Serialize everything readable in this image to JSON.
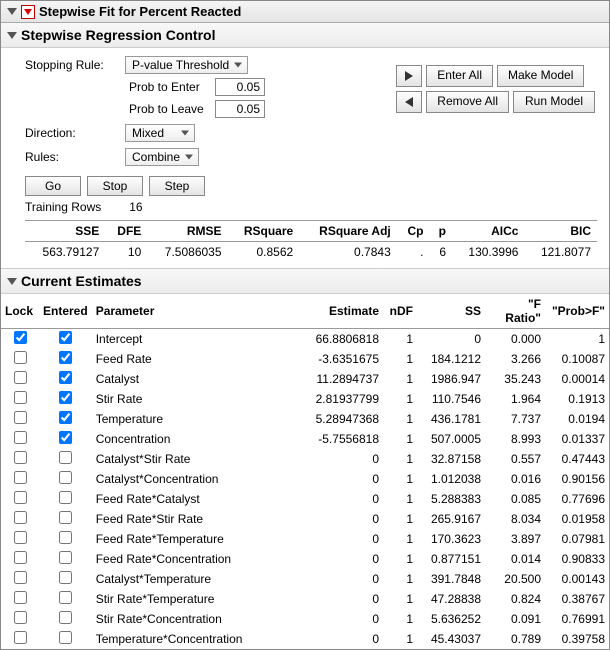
{
  "title": "Stepwise Fit for Percent Reacted",
  "regression": {
    "title": "Stepwise Regression Control",
    "stopping_label": "Stopping Rule:",
    "stopping_value": "P-value Threshold",
    "prob_enter_label": "Prob to Enter",
    "prob_enter_value": "0.05",
    "prob_leave_label": "Prob to Leave",
    "prob_leave_value": "0.05",
    "direction_label": "Direction:",
    "direction_value": "Mixed",
    "rules_label": "Rules:",
    "rules_value": "Combine",
    "enter_all": "Enter All",
    "make_model": "Make Model",
    "remove_all": "Remove All",
    "run_model": "Run Model",
    "go": "Go",
    "stop": "Stop",
    "step": "Step",
    "training_rows_label": "Training Rows",
    "training_rows_value": "16"
  },
  "stats": {
    "headers": [
      "SSE",
      "DFE",
      "RMSE",
      "RSquare",
      "RSquare Adj",
      "Cp",
      "p",
      "AICc",
      "BIC"
    ],
    "values": [
      "563.79127",
      "10",
      "7.5086035",
      "0.8562",
      "0.7843",
      ".",
      "6",
      "130.3996",
      "121.8077"
    ]
  },
  "estimates_title": "Current Estimates",
  "est_headers": {
    "lock": "Lock",
    "entered": "Entered",
    "parameter": "Parameter",
    "estimate": "Estimate",
    "ndf": "nDF",
    "ss": "SS",
    "fratio": "\"F Ratio\"",
    "probf": "\"Prob>F\""
  },
  "rows": [
    {
      "lock": true,
      "entered": true,
      "param": "Intercept",
      "estimate": "66.8806818",
      "ndf": "1",
      "ss": "0",
      "f": "0.000",
      "p": "1"
    },
    {
      "lock": false,
      "entered": true,
      "param": "Feed Rate",
      "estimate": "-3.6351675",
      "ndf": "1",
      "ss": "184.1212",
      "f": "3.266",
      "p": "0.10087"
    },
    {
      "lock": false,
      "entered": true,
      "param": "Catalyst",
      "estimate": "11.2894737",
      "ndf": "1",
      "ss": "1986.947",
      "f": "35.243",
      "p": "0.00014"
    },
    {
      "lock": false,
      "entered": true,
      "param": "Stir Rate",
      "estimate": "2.81937799",
      "ndf": "1",
      "ss": "110.7546",
      "f": "1.964",
      "p": "0.1913"
    },
    {
      "lock": false,
      "entered": true,
      "param": "Temperature",
      "estimate": "5.28947368",
      "ndf": "1",
      "ss": "436.1781",
      "f": "7.737",
      "p": "0.0194"
    },
    {
      "lock": false,
      "entered": true,
      "param": "Concentration",
      "estimate": "-5.7556818",
      "ndf": "1",
      "ss": "507.0005",
      "f": "8.993",
      "p": "0.01337"
    },
    {
      "lock": false,
      "entered": false,
      "param": "Catalyst*Stir Rate",
      "estimate": "0",
      "ndf": "1",
      "ss": "32.87158",
      "f": "0.557",
      "p": "0.47443"
    },
    {
      "lock": false,
      "entered": false,
      "param": "Catalyst*Concentration",
      "estimate": "0",
      "ndf": "1",
      "ss": "1.012038",
      "f": "0.016",
      "p": "0.90156"
    },
    {
      "lock": false,
      "entered": false,
      "param": "Feed Rate*Catalyst",
      "estimate": "0",
      "ndf": "1",
      "ss": "5.288383",
      "f": "0.085",
      "p": "0.77696"
    },
    {
      "lock": false,
      "entered": false,
      "param": "Feed Rate*Stir Rate",
      "estimate": "0",
      "ndf": "1",
      "ss": "265.9167",
      "f": "8.034",
      "p": "0.01958"
    },
    {
      "lock": false,
      "entered": false,
      "param": "Feed Rate*Temperature",
      "estimate": "0",
      "ndf": "1",
      "ss": "170.3623",
      "f": "3.897",
      "p": "0.07981"
    },
    {
      "lock": false,
      "entered": false,
      "param": "Feed Rate*Concentration",
      "estimate": "0",
      "ndf": "1",
      "ss": "0.877151",
      "f": "0.014",
      "p": "0.90833"
    },
    {
      "lock": false,
      "entered": false,
      "param": "Catalyst*Temperature",
      "estimate": "0",
      "ndf": "1",
      "ss": "391.7848",
      "f": "20.500",
      "p": "0.00143"
    },
    {
      "lock": false,
      "entered": false,
      "param": "Stir Rate*Temperature",
      "estimate": "0",
      "ndf": "1",
      "ss": "47.28838",
      "f": "0.824",
      "p": "0.38767"
    },
    {
      "lock": false,
      "entered": false,
      "param": "Stir Rate*Concentration",
      "estimate": "0",
      "ndf": "1",
      "ss": "5.636252",
      "f": "0.091",
      "p": "0.76991"
    },
    {
      "lock": false,
      "entered": false,
      "param": "Temperature*Concentration",
      "estimate": "0",
      "ndf": "1",
      "ss": "45.43037",
      "f": "0.789",
      "p": "0.39758"
    }
  ]
}
